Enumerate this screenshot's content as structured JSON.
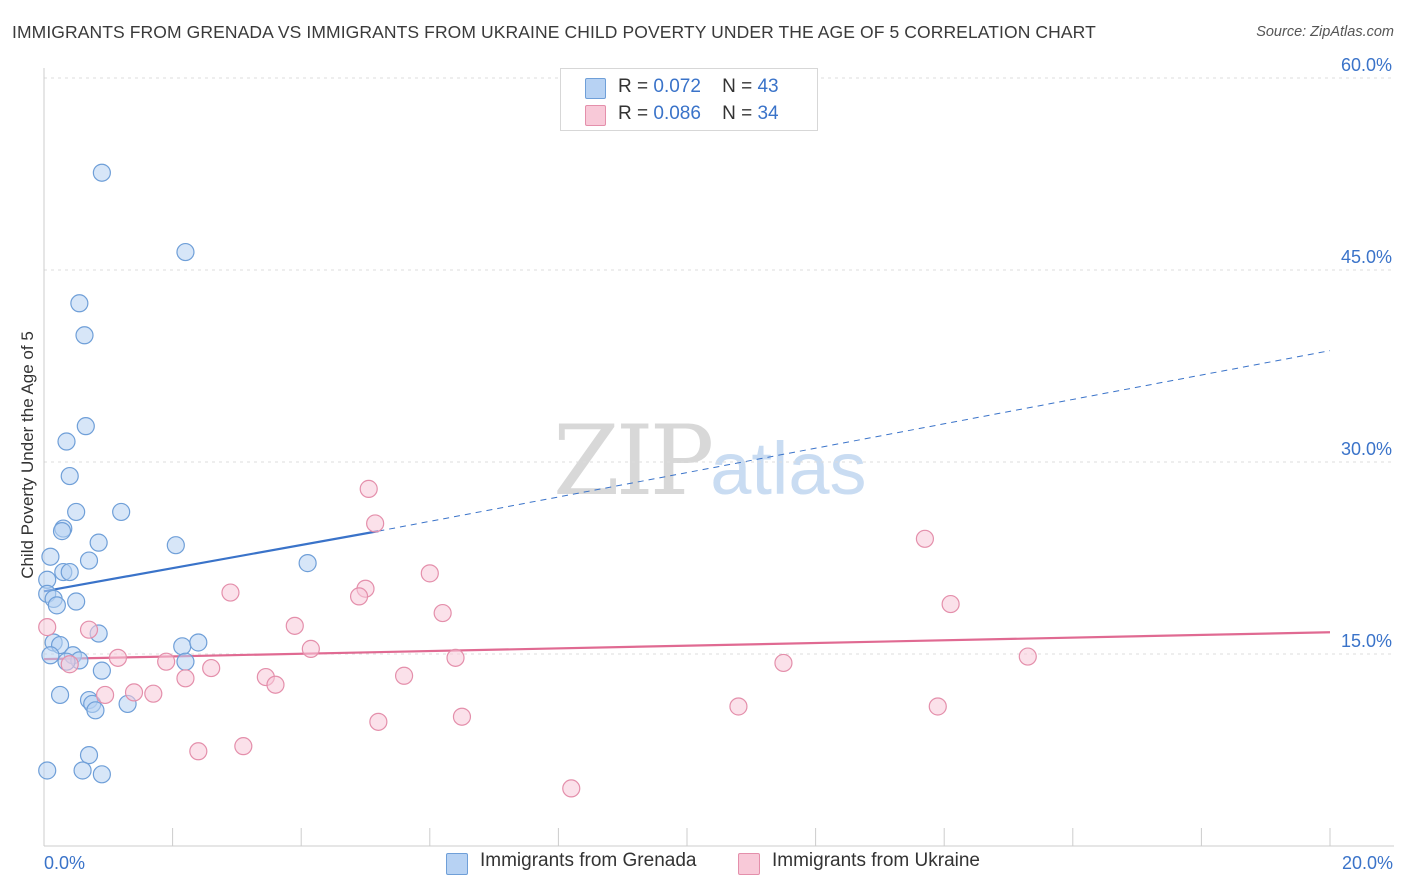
{
  "header": {
    "title": "IMMIGRANTS FROM GRENADA VS IMMIGRANTS FROM UKRAINE CHILD POVERTY UNDER THE AGE OF 5 CORRELATION CHART",
    "source": "Source: ZipAtlas.com"
  },
  "legend": {
    "grenada": {
      "r_label": "R =",
      "r_value": "0.072",
      "n_label": "N =",
      "n_value": "43"
    },
    "ukraine": {
      "r_label": "R =",
      "r_value": "0.086",
      "n_label": "N =",
      "n_value": "34"
    }
  },
  "watermark": {
    "zip": "ZIP",
    "atlas": "atlas"
  },
  "colors": {
    "grenada_fill": "#b7d2f3",
    "grenada_stroke": "#6f9fd8",
    "grenada_line": "#3a73c9",
    "ukraine_fill": "#f8c9d8",
    "ukraine_stroke": "#e48fab",
    "ukraine_line": "#e06a92",
    "axis_text": "#3a73c9",
    "grid": "#dddddd"
  },
  "chart_data": {
    "type": "scatter",
    "title": "IMMIGRANTS FROM GRENADA VS IMMIGRANTS FROM UKRAINE CHILD POVERTY UNDER THE AGE OF 5 CORRELATION CHART",
    "xlabel": "",
    "ylabel": "Child Poverty Under the Age of 5",
    "xlim": [
      0,
      20
    ],
    "ylim": [
      0,
      60
    ],
    "x_tick_labels": [
      "0.0%",
      "20.0%"
    ],
    "y_ticks": [
      15,
      30,
      45,
      60
    ],
    "y_tick_labels": [
      "15.0%",
      "30.0%",
      "45.0%",
      "60.0%"
    ],
    "grid": true,
    "legend_position": "top-center",
    "series": [
      {
        "name": "Immigrants from Grenada",
        "r": 0.072,
        "n": 43,
        "trend": {
          "x0": 0,
          "y0": 19.9,
          "x1": 5.2,
          "y1": 24.6,
          "dashed_to_x": 20,
          "dashed_to_y": 38.7
        },
        "points": [
          [
            0.9,
            52.6
          ],
          [
            2.2,
            46.4
          ],
          [
            0.55,
            42.4
          ],
          [
            0.63,
            39.9
          ],
          [
            0.65,
            32.8
          ],
          [
            0.35,
            31.6
          ],
          [
            0.4,
            28.9
          ],
          [
            0.5,
            26.1
          ],
          [
            1.2,
            26.1
          ],
          [
            0.3,
            24.8
          ],
          [
            0.28,
            24.6
          ],
          [
            2.05,
            23.5
          ],
          [
            0.85,
            23.7
          ],
          [
            0.1,
            22.6
          ],
          [
            0.7,
            22.3
          ],
          [
            4.1,
            22.1
          ],
          [
            0.3,
            21.4
          ],
          [
            0.4,
            21.4
          ],
          [
            0.05,
            20.8
          ],
          [
            0.05,
            19.7
          ],
          [
            0.15,
            19.3
          ],
          [
            0.5,
            19.1
          ],
          [
            0.2,
            18.8
          ],
          [
            0.85,
            16.6
          ],
          [
            0.15,
            15.9
          ],
          [
            0.25,
            15.7
          ],
          [
            2.15,
            15.6
          ],
          [
            2.4,
            15.9
          ],
          [
            0.45,
            14.9
          ],
          [
            0.1,
            14.9
          ],
          [
            0.55,
            14.5
          ],
          [
            0.35,
            14.4
          ],
          [
            2.2,
            14.4
          ],
          [
            0.9,
            13.7
          ],
          [
            0.25,
            11.8
          ],
          [
            0.7,
            11.4
          ],
          [
            0.75,
            11.1
          ],
          [
            1.3,
            11.1
          ],
          [
            0.8,
            10.6
          ],
          [
            0.7,
            7.1
          ],
          [
            0.6,
            5.9
          ],
          [
            0.9,
            5.6
          ],
          [
            0.05,
            5.9
          ]
        ]
      },
      {
        "name": "Immigrants from Ukraine",
        "r": 0.086,
        "n": 34,
        "trend": {
          "x0": 0,
          "y0": 14.6,
          "x1": 20,
          "y1": 16.7
        },
        "points": [
          [
            0.05,
            17.1
          ],
          [
            5.05,
            27.9
          ],
          [
            5.15,
            25.2
          ],
          [
            13.7,
            24.0
          ],
          [
            5.0,
            20.1
          ],
          [
            6.0,
            21.3
          ],
          [
            4.9,
            19.5
          ],
          [
            2.9,
            19.8
          ],
          [
            14.1,
            18.9
          ],
          [
            6.2,
            18.2
          ],
          [
            0.7,
            16.9
          ],
          [
            3.9,
            17.2
          ],
          [
            4.15,
            15.4
          ],
          [
            1.15,
            14.7
          ],
          [
            6.4,
            14.7
          ],
          [
            15.3,
            14.8
          ],
          [
            11.5,
            14.3
          ],
          [
            1.9,
            14.4
          ],
          [
            0.4,
            14.2
          ],
          [
            2.6,
            13.9
          ],
          [
            2.2,
            13.1
          ],
          [
            3.45,
            13.2
          ],
          [
            5.6,
            13.3
          ],
          [
            3.6,
            12.6
          ],
          [
            1.4,
            12.0
          ],
          [
            1.7,
            11.9
          ],
          [
            0.95,
            11.8
          ],
          [
            10.8,
            10.9
          ],
          [
            13.9,
            10.9
          ],
          [
            6.5,
            10.1
          ],
          [
            5.2,
            9.7
          ],
          [
            3.1,
            7.8
          ],
          [
            2.4,
            7.4
          ],
          [
            8.2,
            4.5
          ]
        ]
      }
    ]
  },
  "bottom_legend": {
    "grenada": "Immigrants from Grenada",
    "ukraine": "Immigrants from Ukraine"
  }
}
